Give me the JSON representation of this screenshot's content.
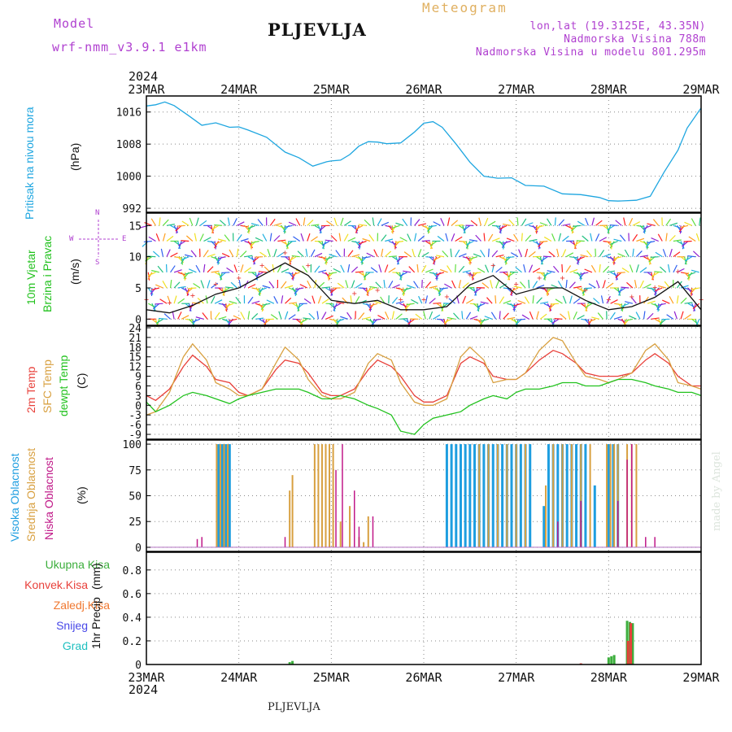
{
  "header": {
    "model_label": "Model",
    "model_name": "wrf-nmm_v3.9.1 e1km",
    "station": "PLJEVLJA",
    "product": "Meteogram",
    "lonlat": "lon,lat (19.3125E, 43.35N)",
    "elevation": "Nadmorska Visina 788m",
    "model_elevation": "Nadmorska Visina u modelu 801.295m"
  },
  "footer": {
    "station": "PLJEVLJA",
    "watermark": "made by Angel"
  },
  "colors": {
    "pressure": "#1ea6e0",
    "temp2m": "#e8403a",
    "sfc": "#d8a040",
    "dewpt": "#22c21e",
    "high_cloud": "#1e9ee0",
    "mid_cloud": "#d8a040",
    "low_cloud": "#c01888",
    "total_precip": "#3cae3c",
    "conv_precip": "#e8403a",
    "frozen_precip": "#f07830",
    "snow": "#4848e8",
    "graupel": "#20c0c0"
  },
  "chart_data": [
    {
      "type": "line",
      "panel": "pressure",
      "year_label": "2024",
      "x_ticks": [
        "23MAR",
        "24MAR",
        "25MAR",
        "26MAR",
        "27MAR",
        "28MAR",
        "29MAR"
      ],
      "ylabel_main": "Pritisak na nivou mora",
      "ylabel_unit": "(hPa)",
      "ylim": [
        991,
        1020
      ],
      "y_ticks": [
        "992",
        "1000",
        "1008",
        "1016"
      ],
      "grid": true,
      "series": [
        {
          "name": "Pritisak na nivou mora",
          "x": [
            0,
            0.1,
            0.2,
            0.3,
            0.45,
            0.6,
            0.75,
            0.9,
            1.0,
            1.1,
            1.3,
            1.5,
            1.65,
            1.8,
            1.95,
            2.0,
            2.1,
            2.2,
            2.3,
            2.4,
            2.5,
            2.6,
            2.75,
            2.9,
            3.0,
            3.1,
            3.2,
            3.35,
            3.5,
            3.65,
            3.8,
            3.95,
            4.1,
            4.3,
            4.5,
            4.7,
            4.9,
            5.0,
            5.1,
            5.3,
            5.45,
            5.6,
            5.75,
            5.85,
            6.0
          ],
          "y": [
            1017.5,
            1017.8,
            1018.5,
            1017.6,
            1015.2,
            1012.7,
            1013.3,
            1012.2,
            1012.3,
            1011.5,
            1009.7,
            1006.0,
            1004.6,
            1002.5,
            1003.6,
            1003.8,
            1004.0,
            1005.4,
            1007.5,
            1008.6,
            1008.5,
            1008.1,
            1008.3,
            1011.0,
            1013.2,
            1013.6,
            1012.2,
            1008.0,
            1003.5,
            1000.0,
            999.5,
            999.6,
            997.7,
            997.5,
            995.6,
            995.4,
            994.7,
            993.9,
            993.8,
            994.0,
            995.0,
            1001.0,
            1006.5,
            1012.0,
            1017.0
          ]
        }
      ]
    },
    {
      "type": "scatter",
      "panel": "wind",
      "ylabel_main": "10m Vjetar",
      "ylabel_sub": "Brzina i Pravac",
      "ylabel_unit": "(m/s)",
      "compass_n": "N",
      "compass_s": "S",
      "compass_e": "E",
      "compass_w": "W",
      "ylim": [
        -1,
        17
      ],
      "y_ticks": [
        "0",
        "5",
        "10",
        "15"
      ],
      "grid": true,
      "series": [
        {
          "name": "10m Vjetar",
          "x": [
            0,
            0.25,
            0.5,
            0.75,
            1.0,
            1.25,
            1.5,
            1.75,
            2.0,
            2.25,
            2.5,
            2.75,
            3.0,
            3.25,
            3.5,
            3.75,
            4.0,
            4.25,
            4.5,
            4.75,
            5.0,
            5.25,
            5.5,
            5.75,
            6.0
          ],
          "y": [
            1.5,
            1.0,
            2.2,
            4.0,
            5.0,
            7.0,
            9.0,
            7.0,
            3.0,
            2.5,
            3.0,
            1.5,
            1.5,
            2.0,
            5.5,
            7.0,
            4.0,
            5.0,
            5.0,
            3.0,
            1.5,
            2.0,
            3.5,
            6.0,
            1.5
          ]
        }
      ]
    },
    {
      "type": "line",
      "panel": "temperature",
      "ylabel_lines": [
        "2m Temp",
        "SFC Temp",
        "dewpt Temp"
      ],
      "ylabel_unit": "(C)",
      "ylim": [
        -10.5,
        24.5
      ],
      "y_ticks": [
        "-9",
        "-6",
        "-3",
        "0",
        "3",
        "6",
        "9",
        "12",
        "15",
        "18",
        "21",
        "24"
      ],
      "grid": true,
      "x": [
        0,
        0.1,
        0.25,
        0.4,
        0.5,
        0.65,
        0.75,
        0.9,
        1.0,
        1.1,
        1.25,
        1.4,
        1.5,
        1.65,
        1.75,
        1.9,
        2.0,
        2.1,
        2.25,
        2.4,
        2.5,
        2.65,
        2.75,
        2.9,
        3.0,
        3.1,
        3.25,
        3.4,
        3.5,
        3.65,
        3.75,
        3.9,
        4.0,
        4.1,
        4.25,
        4.4,
        4.5,
        4.65,
        4.75,
        4.9,
        5.0,
        5.1,
        5.25,
        5.4,
        5.5,
        5.65,
        5.75,
        5.9,
        6.0
      ],
      "series": [
        {
          "name": "2m Temp",
          "y": [
            3,
            1.5,
            5,
            12,
            15.5,
            12,
            8,
            7,
            4,
            3,
            5,
            11,
            14,
            13,
            10,
            4,
            3,
            3,
            5,
            11,
            14,
            12,
            9,
            3,
            1,
            1,
            3,
            13,
            15,
            13,
            9,
            8,
            8,
            10,
            14,
            17,
            16,
            13,
            10,
            9,
            9,
            9,
            10,
            14,
            16,
            13,
            9,
            6,
            6
          ]
        },
        {
          "name": "SFC Temp",
          "y": [
            -3,
            -2,
            4,
            15,
            19,
            14,
            7,
            5,
            3,
            3,
            5,
            13,
            18,
            14,
            8,
            3,
            2,
            2,
            4,
            13,
            16,
            14,
            7,
            1,
            0,
            0,
            2,
            15,
            18,
            14,
            7,
            8,
            8,
            10,
            17,
            21,
            20,
            13,
            9,
            8,
            7,
            8,
            10,
            17,
            19,
            14,
            7,
            6,
            5
          ]
        },
        {
          "name": "dewpt Temp",
          "y": [
            1,
            -2,
            0,
            3,
            4,
            3,
            2,
            0.5,
            2,
            3,
            4,
            5,
            5,
            5,
            4,
            2,
            2,
            3,
            2,
            0,
            -1,
            -3,
            -8,
            -9,
            -6,
            -4,
            -3,
            -2,
            0,
            2,
            3,
            2,
            4,
            5,
            5,
            6,
            7,
            7,
            6,
            6,
            7,
            8,
            8,
            7,
            6,
            5,
            4,
            4,
            3
          ]
        }
      ]
    },
    {
      "type": "bar",
      "panel": "cloud",
      "ylabel_lines": [
        "Visoka Oblacnost",
        "Srednja Oblacnost",
        "Niska Oblacnost"
      ],
      "ylabel_unit": "(%)",
      "ylim": [
        -4,
        104
      ],
      "y_ticks": [
        "0",
        "25",
        "50",
        "75",
        "100"
      ],
      "grid": true,
      "series": [
        {
          "name": "Visoka Oblacnost",
          "x": [
            0.78,
            0.82,
            0.86,
            0.9,
            3.25,
            3.3,
            3.35,
            3.4,
            3.45,
            3.5,
            3.55,
            3.6,
            3.65,
            3.7,
            3.75,
            3.8,
            3.85,
            3.9,
            3.95,
            4.0,
            4.05,
            4.1,
            4.15,
            4.3,
            4.35,
            4.4,
            4.45,
            4.5,
            4.55,
            4.6,
            4.65,
            4.7,
            4.75,
            4.85,
            5.0,
            5.05,
            5.1
          ],
          "values": [
            100,
            100,
            100,
            100,
            100,
            100,
            100,
            100,
            100,
            100,
            100,
            100,
            100,
            100,
            100,
            100,
            100,
            100,
            100,
            100,
            100,
            100,
            100,
            40,
            100,
            100,
            100,
            100,
            100,
            100,
            100,
            100,
            100,
            60,
            100,
            100,
            100
          ]
        },
        {
          "name": "Srednja Oblacnost",
          "x": [
            0.76,
            0.8,
            0.84,
            0.88,
            1.55,
            1.58,
            1.82,
            1.86,
            1.9,
            1.94,
            1.98,
            2.02,
            2.1,
            2.2,
            2.3,
            2.35,
            2.4,
            3.6,
            3.7,
            3.8,
            3.9,
            4.0,
            4.1,
            4.32,
            4.4,
            4.5,
            4.6,
            4.7,
            4.8,
            4.98,
            5.02,
            5.06,
            5.1,
            5.2,
            5.25,
            5.3
          ],
          "values": [
            100,
            100,
            100,
            100,
            55,
            70,
            100,
            100,
            100,
            100,
            100,
            100,
            25,
            40,
            10,
            5,
            30,
            100,
            100,
            100,
            100,
            100,
            100,
            60,
            100,
            100,
            100,
            100,
            100,
            100,
            100,
            100,
            100,
            100,
            100,
            100
          ]
        },
        {
          "name": "Niska Oblacnost",
          "x": [
            0.55,
            0.6,
            1.5,
            2.05,
            2.12,
            2.25,
            2.3,
            2.45,
            4.45,
            4.7,
            5.1,
            5.2,
            5.25,
            5.4,
            5.5
          ],
          "values": [
            8,
            10,
            10,
            75,
            100,
            55,
            20,
            30,
            25,
            45,
            45,
            85,
            100,
            10,
            10
          ]
        }
      ]
    },
    {
      "type": "bar",
      "panel": "precip",
      "legend": [
        "Ukupna Kisa",
        "Konvek.Kisa",
        "Zaledj.Kisa",
        "Snijeg",
        "Grad"
      ],
      "ylabel_main": "1hr Precip",
      "ylabel_unit": "(mm)",
      "ylim": [
        0,
        0.95
      ],
      "y_ticks": [
        "0",
        "0.2",
        "0.4",
        "0.6",
        "0.8"
      ],
      "grid": true,
      "series": [
        {
          "name": "Ukupna Kisa",
          "x": [
            1.55,
            1.58,
            5.0,
            5.03,
            5.06,
            5.2,
            5.23,
            5.26
          ],
          "values": [
            0.02,
            0.03,
            0.06,
            0.07,
            0.08,
            0.37,
            0.36,
            0.35
          ]
        },
        {
          "name": "Konvek.Kisa",
          "x": [
            4.7,
            5.21,
            5.24
          ],
          "values": [
            0.01,
            0.2,
            0.35
          ]
        }
      ]
    }
  ]
}
